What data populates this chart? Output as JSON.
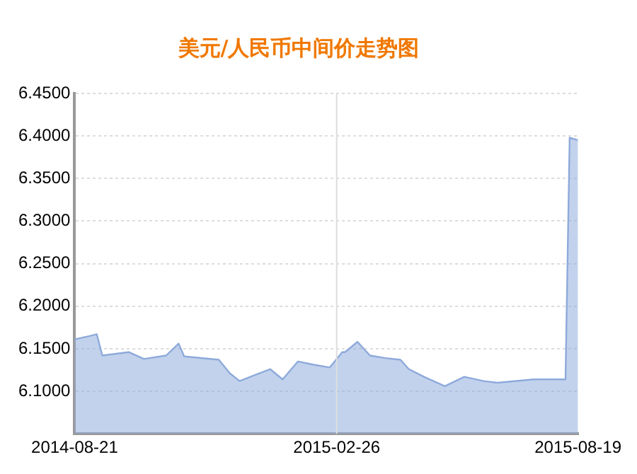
{
  "chart_data": {
    "type": "area",
    "title": "美元/人民币中间价走势图",
    "x": [
      "2014-08-21",
      "2014-09-01",
      "2014-09-06",
      "2014-09-10",
      "2014-09-29",
      "2014-10-10",
      "2014-10-26",
      "2014-11-04",
      "2014-11-08",
      "2014-12-03",
      "2014-12-11",
      "2014-12-18",
      "2014-12-29",
      "2015-01-09",
      "2015-01-18",
      "2015-01-29",
      "2015-02-10",
      "2015-02-21",
      "2015-03-02",
      "2015-03-04",
      "2015-03-13",
      "2015-03-22",
      "2015-04-02",
      "2015-04-13",
      "2015-04-19",
      "2015-04-30",
      "2015-05-15",
      "2015-05-29",
      "2015-06-12",
      "2015-06-22",
      "2015-07-18",
      "2015-08-10",
      "2015-08-13",
      "2015-08-19"
    ],
    "series": [
      {
        "color": "#8eaadb",
        "values": [
          6.161,
          6.165,
          6.167,
          6.142,
          6.146,
          6.138,
          6.142,
          6.156,
          6.141,
          6.137,
          6.121,
          6.112,
          6.119,
          6.126,
          6.114,
          6.135,
          6.131,
          6.128,
          6.146,
          6.146,
          6.158,
          6.142,
          6.139,
          6.137,
          6.126,
          6.117,
          6.106,
          6.117,
          6.112,
          6.11,
          6.114,
          6.114,
          6.398,
          6.395
        ]
      }
    ],
    "ylim": [
      6.05,
      6.45
    ],
    "yticks": [
      {
        "value": 6.1,
        "label": "6.1000"
      },
      {
        "value": 6.15,
        "label": "6.1500"
      },
      {
        "value": 6.2,
        "label": "6.2000"
      },
      {
        "value": 6.25,
        "label": "6.2500"
      },
      {
        "value": 6.3,
        "label": "6.3000"
      },
      {
        "value": 6.35,
        "label": "6.3500"
      },
      {
        "value": 6.4,
        "label": "6.4000"
      },
      {
        "value": 6.45,
        "label": "6.4500"
      }
    ],
    "xlim": [
      "2014-08-21",
      "2015-08-19"
    ],
    "xticks": [
      "2014-08-21",
      "2015-02-26",
      "2015-08-19"
    ],
    "ref_lines": [
      {
        "axis": "x",
        "value": "2015-02-26",
        "color": "#dddddd"
      }
    ],
    "grid": "y",
    "legend": false
  }
}
